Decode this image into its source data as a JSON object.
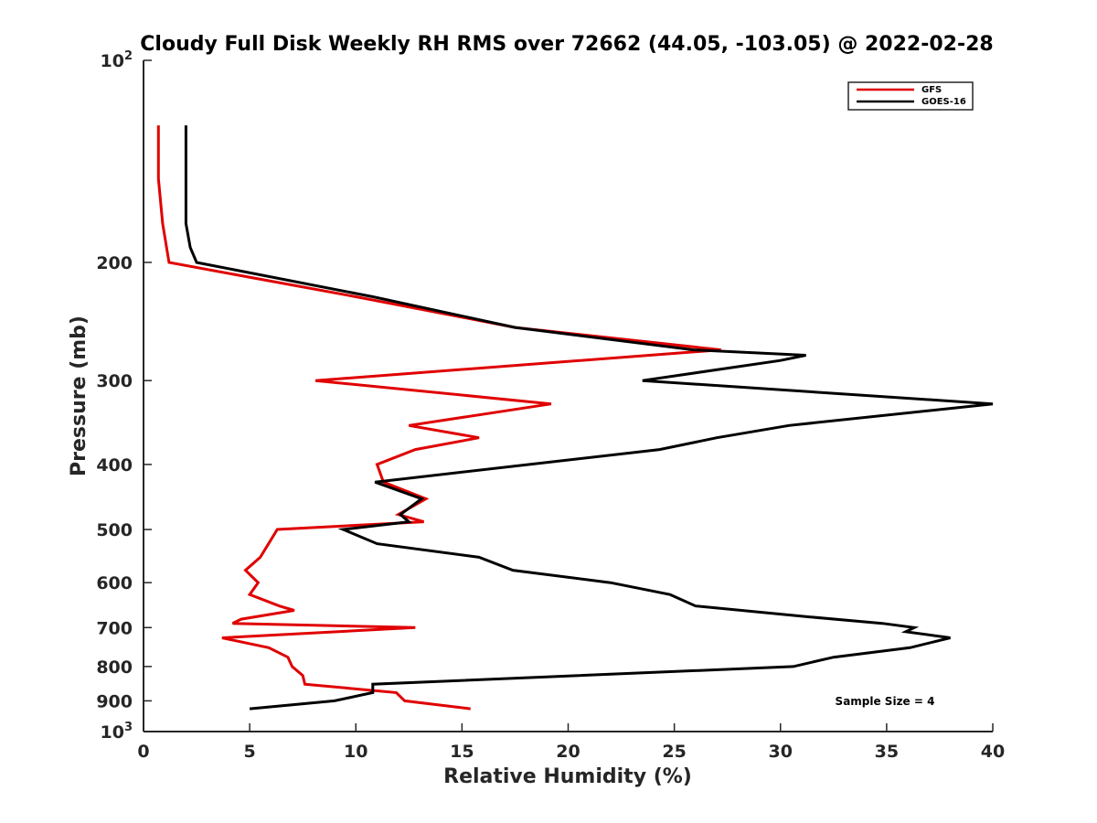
{
  "chart_data": {
    "type": "line",
    "title": "Cloudy Full Disk Weekly RH RMS over 72662 (44.05, -103.05) @ 2022-02-28",
    "xlabel": "Relative Humidity (%)",
    "ylabel": "Pressure (mb)",
    "xlim": [
      0,
      40
    ],
    "ylim": [
      100,
      1000
    ],
    "y_scale": "log",
    "y_reversed": true,
    "x_ticks": [
      0,
      5,
      10,
      15,
      20,
      25,
      30,
      35,
      40
    ],
    "x_tick_labels": [
      "0",
      "5",
      "10",
      "15",
      "20",
      "25",
      "30",
      "35",
      "40"
    ],
    "y_ticks": [
      100,
      200,
      300,
      400,
      500,
      600,
      700,
      800,
      900,
      1000
    ],
    "y_tick_labels": [
      {
        "base": "10",
        "exp": "2"
      },
      {
        "base": "200"
      },
      {
        "base": "300"
      },
      {
        "base": "400"
      },
      {
        "base": "500"
      },
      {
        "base": "600"
      },
      {
        "base": "700"
      },
      {
        "base": "800"
      },
      {
        "base": "900"
      },
      {
        "base": "10",
        "exp": "3"
      }
    ],
    "grid": false,
    "legend_position": "top-right",
    "annotation": "Sample Size = 4",
    "series": [
      {
        "name": "GFS",
        "color": "#e00000",
        "points": [
          [
            0.7,
            125
          ],
          [
            0.7,
            150
          ],
          [
            0.9,
            175
          ],
          [
            1.2,
            200
          ],
          [
            10,
            225
          ],
          [
            17.5,
            250
          ],
          [
            27.2,
            270
          ],
          [
            8.1,
            300
          ],
          [
            19.2,
            325
          ],
          [
            12.5,
            350
          ],
          [
            15.8,
            365
          ],
          [
            12.8,
            380
          ],
          [
            11.0,
            400
          ],
          [
            11.3,
            425
          ],
          [
            13.3,
            450
          ],
          [
            12.0,
            475
          ],
          [
            13.2,
            487
          ],
          [
            6.3,
            500
          ],
          [
            5.5,
            550
          ],
          [
            4.8,
            575
          ],
          [
            5.4,
            600
          ],
          [
            5.0,
            625
          ],
          [
            6.4,
            650
          ],
          [
            7.1,
            660
          ],
          [
            4.6,
            680
          ],
          [
            4.2,
            690
          ],
          [
            12.8,
            700
          ],
          [
            3.7,
            725
          ],
          [
            5.9,
            750
          ],
          [
            6.8,
            775
          ],
          [
            7.0,
            800
          ],
          [
            7.5,
            825
          ],
          [
            7.6,
            850
          ],
          [
            11.9,
            875
          ],
          [
            12.3,
            900
          ],
          [
            15.4,
            925
          ]
        ]
      },
      {
        "name": "GOES-16",
        "color": "#000000",
        "points": [
          [
            2.0,
            125
          ],
          [
            2.0,
            150
          ],
          [
            2.0,
            175
          ],
          [
            2.2,
            190
          ],
          [
            2.5,
            200
          ],
          [
            10.8,
            225
          ],
          [
            17.5,
            250
          ],
          [
            25.9,
            270
          ],
          [
            31.2,
            275
          ],
          [
            30,
            280
          ],
          [
            23.5,
            300
          ],
          [
            40.0,
            325
          ],
          [
            30.4,
            350
          ],
          [
            27,
            365
          ],
          [
            24.3,
            380
          ],
          [
            10.9,
            425
          ],
          [
            13.1,
            450
          ],
          [
            12.1,
            475
          ],
          [
            12.5,
            487
          ],
          [
            9.4,
            500
          ],
          [
            11.0,
            525
          ],
          [
            15.8,
            550
          ],
          [
            17.4,
            575
          ],
          [
            22.0,
            600
          ],
          [
            24.8,
            625
          ],
          [
            26.0,
            650
          ],
          [
            31.4,
            675
          ],
          [
            34.8,
            690
          ],
          [
            36.3,
            700
          ],
          [
            35.9,
            710
          ],
          [
            38.0,
            725
          ],
          [
            36.1,
            750
          ],
          [
            32.5,
            775
          ],
          [
            30.6,
            800
          ],
          [
            10.8,
            850
          ],
          [
            10.8,
            875
          ],
          [
            9.0,
            900
          ],
          [
            5.0,
            925
          ]
        ]
      }
    ]
  }
}
